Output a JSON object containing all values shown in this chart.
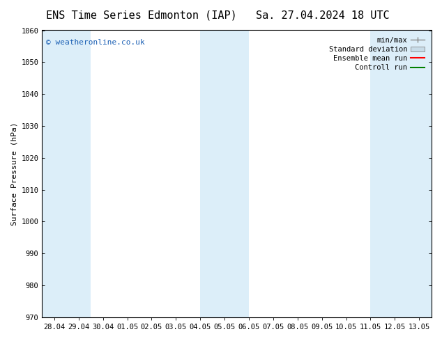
{
  "title_left": "ENS Time Series Edmonton (IAP)",
  "title_right": "Sa. 27.04.2024 18 UTC",
  "ylabel": "Surface Pressure (hPa)",
  "ylim": [
    970,
    1060
  ],
  "yticks": [
    970,
    980,
    990,
    1000,
    1010,
    1020,
    1030,
    1040,
    1050,
    1060
  ],
  "xtick_labels": [
    "28.04",
    "29.04",
    "30.04",
    "01.05",
    "02.05",
    "03.05",
    "04.05",
    "05.05",
    "06.05",
    "07.05",
    "08.05",
    "09.05",
    "10.05",
    "11.05",
    "12.05",
    "13.05"
  ],
  "xtick_positions": [
    0,
    1,
    2,
    3,
    4,
    5,
    6,
    7,
    8,
    9,
    10,
    11,
    12,
    13,
    14,
    15
  ],
  "shaded_bands": [
    {
      "xstart": -0.5,
      "xend": 0.5,
      "color": "#dceef9"
    },
    {
      "xstart": 0.5,
      "xend": 1.5,
      "color": "#dceef9"
    },
    {
      "xstart": 6.0,
      "xend": 7.0,
      "color": "#dceef9"
    },
    {
      "xstart": 7.0,
      "xend": 8.0,
      "color": "#dceef9"
    },
    {
      "xstart": 13.0,
      "xend": 14.0,
      "color": "#dceef9"
    },
    {
      "xstart": 14.0,
      "xend": 15.5,
      "color": "#dceef9"
    }
  ],
  "watermark": "© weatheronline.co.uk",
  "watermark_color": "#1a5fb4",
  "legend_items": [
    {
      "label": "min/max",
      "color": "#aaaaaa",
      "style": "errorbar"
    },
    {
      "label": "Standard deviation",
      "color": "#c8dce8",
      "style": "fill"
    },
    {
      "label": "Ensemble mean run",
      "color": "red",
      "style": "line"
    },
    {
      "label": "Controll run",
      "color": "green",
      "style": "line"
    }
  ],
  "bg_color": "#ffffff",
  "plot_bg_color": "#ffffff",
  "title_fontsize": 11,
  "axis_fontsize": 8,
  "tick_fontsize": 7.5,
  "border_color": "#000000"
}
